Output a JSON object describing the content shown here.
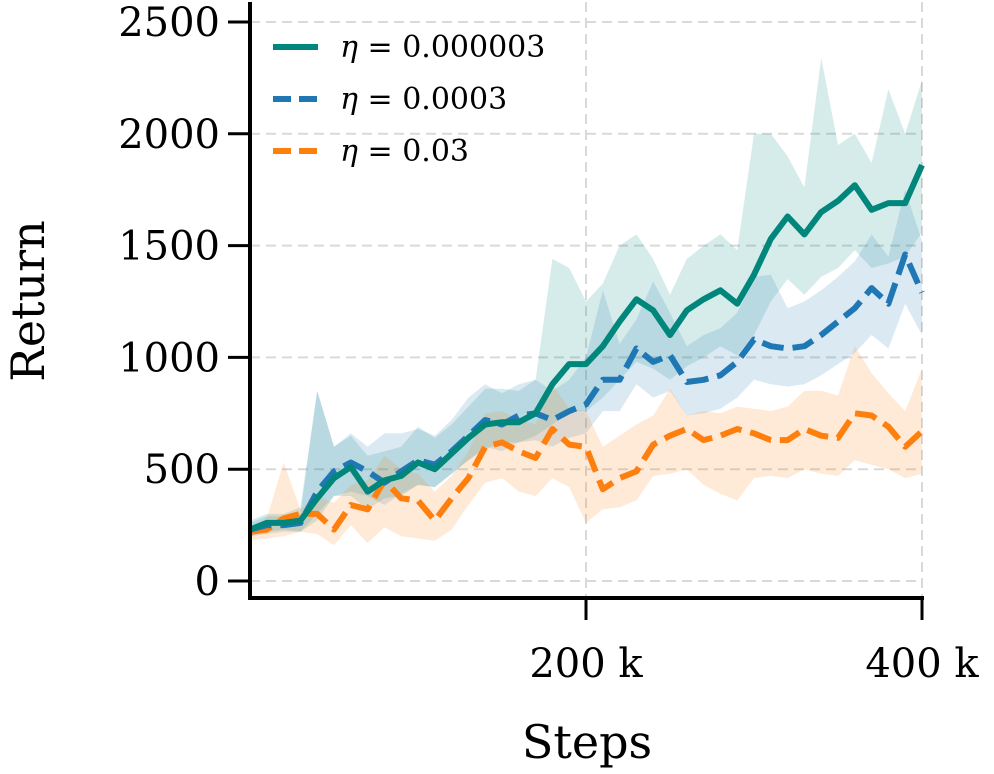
{
  "chart_data": {
    "type": "line",
    "title": "",
    "xlabel": "Steps",
    "ylabel": "Return",
    "xlim": [
      0,
      400000
    ],
    "ylim": [
      0,
      2500
    ],
    "x_ticks": [
      200000,
      400000
    ],
    "x_tick_labels": [
      "200 k",
      "400 k"
    ],
    "y_ticks": [
      0,
      500,
      1000,
      1500,
      2000,
      2500
    ],
    "y_tick_labels": [
      "0",
      "500",
      "1000",
      "1500",
      "2000",
      "2500"
    ],
    "grid": true,
    "legend_position": "top-left",
    "x": [
      0,
      10000,
      20000,
      30000,
      40000,
      50000,
      60000,
      70000,
      80000,
      90000,
      100000,
      110000,
      120000,
      130000,
      140000,
      150000,
      160000,
      170000,
      180000,
      190000,
      200000,
      210000,
      220000,
      230000,
      240000,
      250000,
      260000,
      270000,
      280000,
      290000,
      300000,
      310000,
      320000,
      330000,
      340000,
      350000,
      360000,
      370000,
      380000,
      390000,
      400000
    ],
    "series": [
      {
        "name": "η = 0.000003",
        "legend_symbol": "η",
        "legend_value": "= 0.000003",
        "color": "#00867a",
        "dash": "solid",
        "values": [
          230,
          260,
          260,
          270,
          370,
          460,
          510,
          400,
          450,
          470,
          530,
          500,
          570,
          640,
          700,
          710,
          710,
          750,
          880,
          970,
          970,
          1050,
          1160,
          1260,
          1210,
          1100,
          1210,
          1260,
          1300,
          1240,
          1370,
          1530,
          1630,
          1550,
          1650,
          1700,
          1770,
          1660,
          1690,
          1690,
          1860
        ],
        "lower": [
          200,
          220,
          230,
          220,
          270,
          380,
          380,
          320,
          370,
          380,
          430,
          420,
          480,
          540,
          590,
          620,
          620,
          650,
          700,
          760,
          760,
          820,
          900,
          980,
          950,
          900,
          960,
          1000,
          1050,
          1010,
          1100,
          1250,
          1350,
          1280,
          1360,
          1400,
          1480,
          1400,
          1420,
          1450,
          1560
        ],
        "upper": [
          270,
          300,
          300,
          330,
          850,
          600,
          650,
          560,
          580,
          600,
          690,
          640,
          700,
          780,
          860,
          860,
          850,
          900,
          1440,
          1400,
          1250,
          1330,
          1500,
          1550,
          1440,
          1280,
          1440,
          1500,
          1550,
          1480,
          2000,
          2000,
          1900,
          1760,
          2340,
          1950,
          2000,
          1870,
          2200,
          2000,
          2240
        ]
      },
      {
        "name": "η = 0.0003",
        "legend_symbol": "η",
        "legend_value": "= 0.0003",
        "color": "#1f77b4",
        "dash": "dashed",
        "values": [
          230,
          250,
          250,
          260,
          400,
          490,
          530,
          490,
          440,
          490,
          540,
          520,
          580,
          650,
          720,
          700,
          740,
          750,
          720,
          760,
          790,
          900,
          900,
          1040,
          980,
          1010,
          890,
          900,
          920,
          980,
          1080,
          1050,
          1040,
          1050,
          1100,
          1160,
          1220,
          1310,
          1240,
          1460,
          1290
        ],
        "lower": [
          200,
          210,
          220,
          220,
          300,
          380,
          400,
          380,
          340,
          390,
          430,
          420,
          480,
          540,
          600,
          580,
          620,
          630,
          600,
          640,
          660,
          760,
          760,
          880,
          820,
          850,
          740,
          750,
          770,
          820,
          900,
          880,
          870,
          880,
          920,
          970,
          1020,
          1100,
          1040,
          1240,
          1100
        ],
        "upper": [
          260,
          290,
          290,
          300,
          850,
          600,
          660,
          600,
          660,
          660,
          680,
          650,
          720,
          820,
          880,
          840,
          880,
          900,
          850,
          900,
          1000,
          1300,
          1060,
          1170,
          1340,
          1200,
          1050,
          1100,
          1130,
          1200,
          1360,
          1370,
          1220,
          1250,
          1300,
          1360,
          1430,
          1550,
          1450,
          1750,
          1520
        ]
      },
      {
        "name": "η = 0.03",
        "legend_symbol": "η",
        "legend_value": "= 0.03",
        "color": "#ff7f0e",
        "dash": "dashed",
        "values": [
          220,
          230,
          280,
          300,
          300,
          230,
          340,
          320,
          450,
          370,
          360,
          270,
          370,
          460,
          600,
          620,
          580,
          550,
          680,
          610,
          600,
          410,
          460,
          490,
          610,
          650,
          680,
          630,
          650,
          680,
          660,
          630,
          630,
          680,
          650,
          640,
          750,
          740,
          690,
          600,
          670
        ],
        "lower": [
          180,
          190,
          200,
          220,
          210,
          160,
          250,
          170,
          240,
          200,
          190,
          180,
          230,
          340,
          440,
          460,
          400,
          380,
          460,
          420,
          260,
          320,
          330,
          360,
          470,
          480,
          500,
          430,
          390,
          360,
          460,
          470,
          460,
          500,
          480,
          470,
          540,
          520,
          500,
          460,
          480
        ],
        "upper": [
          240,
          280,
          530,
          320,
          380,
          350,
          430,
          450,
          560,
          500,
          480,
          400,
          470,
          580,
          750,
          760,
          720,
          700,
          880,
          770,
          760,
          600,
          650,
          700,
          740,
          860,
          740,
          760,
          750,
          780,
          770,
          760,
          780,
          850,
          850,
          830,
          1050,
          930,
          840,
          760,
          950
        ]
      }
    ]
  }
}
